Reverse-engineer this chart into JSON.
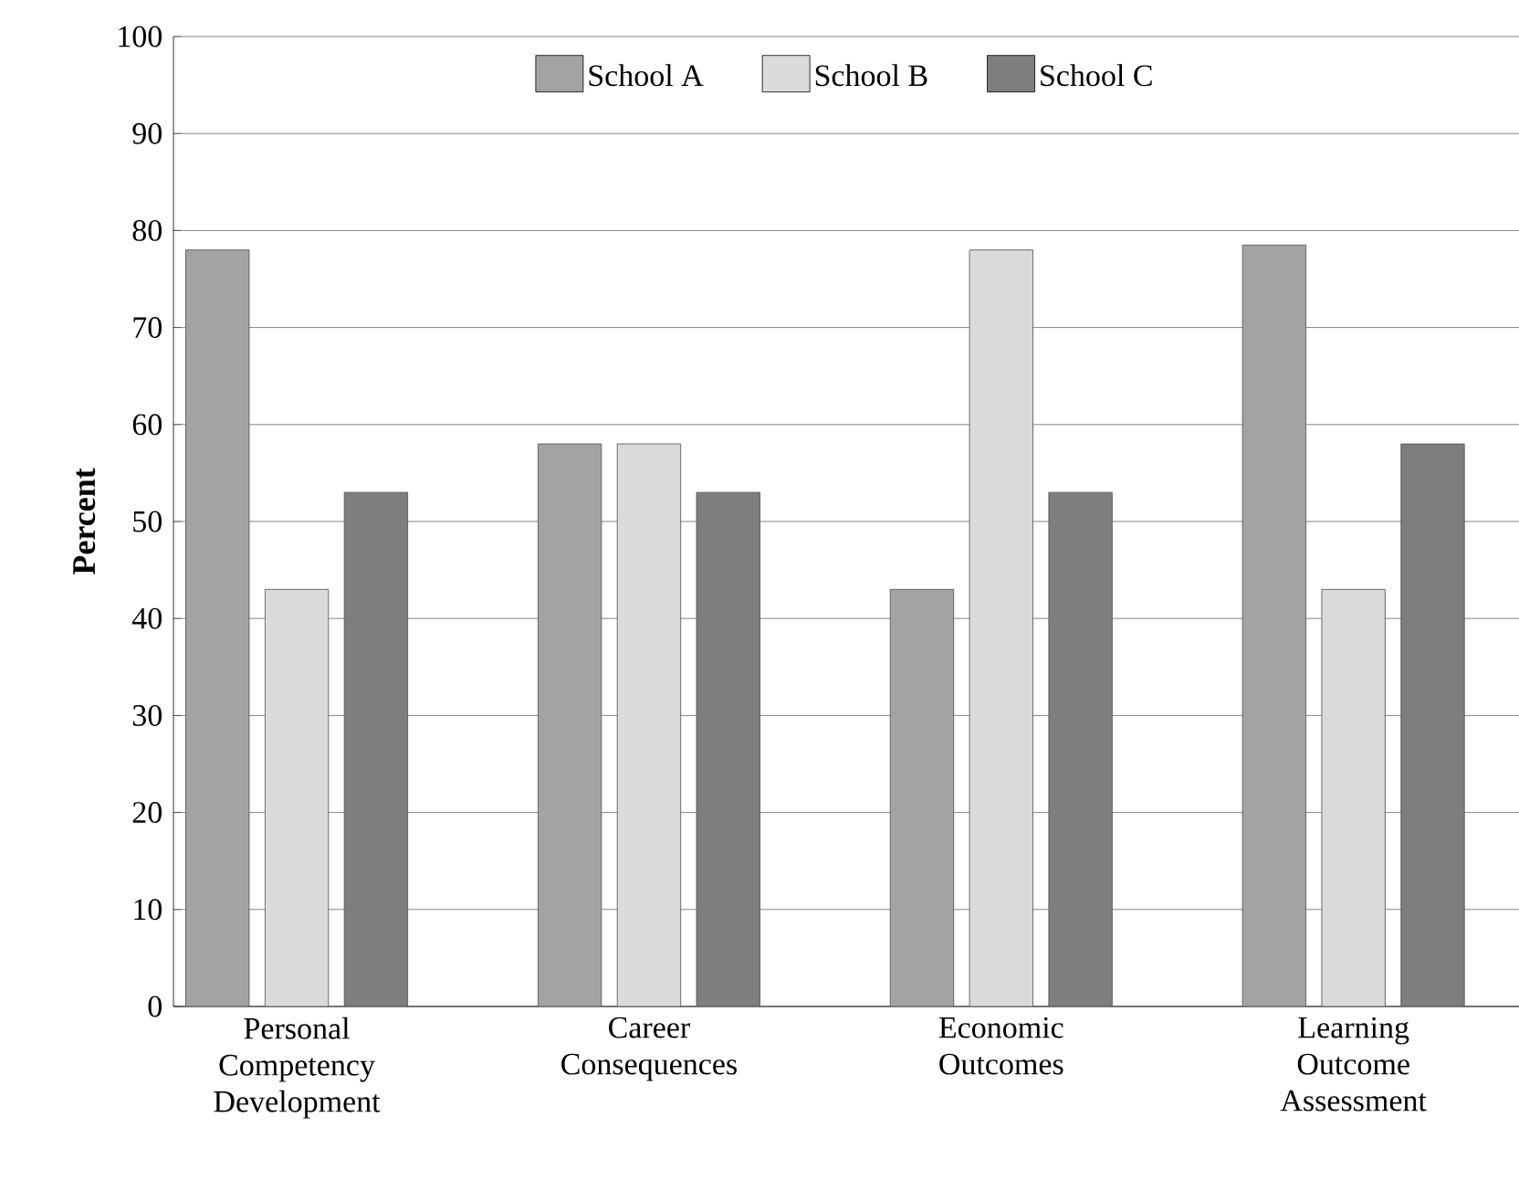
{
  "chart_data": {
    "type": "bar",
    "ylabel": "Percent",
    "categories": [
      "Personal Competency Development",
      "Career Consequences",
      "Economic Outcomes",
      "Learning Outcome Assessment"
    ],
    "series": [
      {
        "name": "School A",
        "color": "#a3a3a3",
        "values": [
          78,
          58,
          43,
          78.5
        ]
      },
      {
        "name": "School B",
        "color": "#dadada",
        "values": [
          43,
          58,
          78,
          43
        ]
      },
      {
        "name": "School C",
        "color": "#7e7e7e",
        "values": [
          53,
          53,
          53,
          58
        ]
      }
    ],
    "ylim": [
      0,
      100
    ],
    "yticks": [
      0,
      10,
      20,
      30,
      40,
      50,
      60,
      70,
      80,
      90,
      100
    ],
    "grid": "y",
    "legend": "top"
  }
}
